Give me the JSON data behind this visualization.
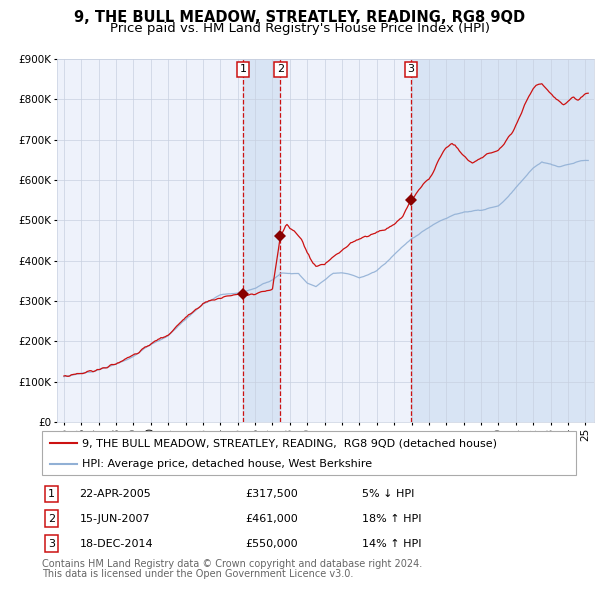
{
  "title": "9, THE BULL MEADOW, STREATLEY, READING, RG8 9QD",
  "subtitle": "Price paid vs. HM Land Registry's House Price Index (HPI)",
  "ylim": [
    0,
    900000
  ],
  "yticks": [
    0,
    100000,
    200000,
    300000,
    400000,
    500000,
    600000,
    700000,
    800000,
    900000
  ],
  "ytick_labels": [
    "£0",
    "£100K",
    "£200K",
    "£300K",
    "£400K",
    "£500K",
    "£600K",
    "£700K",
    "£800K",
    "£900K"
  ],
  "xlim_start": 1994.6,
  "xlim_end": 2025.5,
  "background_color": "#ffffff",
  "plot_bg_color": "#eef2fb",
  "grid_color": "#c8d0e0",
  "hpi_line_color": "#91b0d5",
  "price_line_color": "#cc1111",
  "shade_color": "#d8e4f4",
  "dashed_line_color": "#cc1111",
  "sale_marker_color": "#880000",
  "sales": [
    {
      "num": 1,
      "date_num": 2005.31,
      "price": 317500,
      "label": "1",
      "pct": "5%",
      "dir": "↓",
      "date_str": "22-APR-2005",
      "price_str": "£317,500"
    },
    {
      "num": 2,
      "date_num": 2007.46,
      "price": 461000,
      "label": "2",
      "pct": "18%",
      "dir": "↑",
      "date_str": "15-JUN-2007",
      "price_str": "£461,000"
    },
    {
      "num": 3,
      "date_num": 2014.96,
      "price": 550000,
      "label": "3",
      "pct": "14%",
      "dir": "↑",
      "date_str": "18-DEC-2014",
      "price_str": "£550,000"
    }
  ],
  "legend_entries": [
    {
      "label": "9, THE BULL MEADOW, STREATLEY, READING,  RG8 9QD (detached house)",
      "color": "#cc1111"
    },
    {
      "label": "HPI: Average price, detached house, West Berkshire",
      "color": "#91b0d5"
    }
  ],
  "footnote1": "Contains HM Land Registry data © Crown copyright and database right 2024.",
  "footnote2": "This data is licensed under the Open Government Licence v3.0.",
  "title_fontsize": 10.5,
  "subtitle_fontsize": 9.5,
  "tick_fontsize": 7.5,
  "legend_fontsize": 8,
  "table_fontsize": 8,
  "footnote_fontsize": 7
}
